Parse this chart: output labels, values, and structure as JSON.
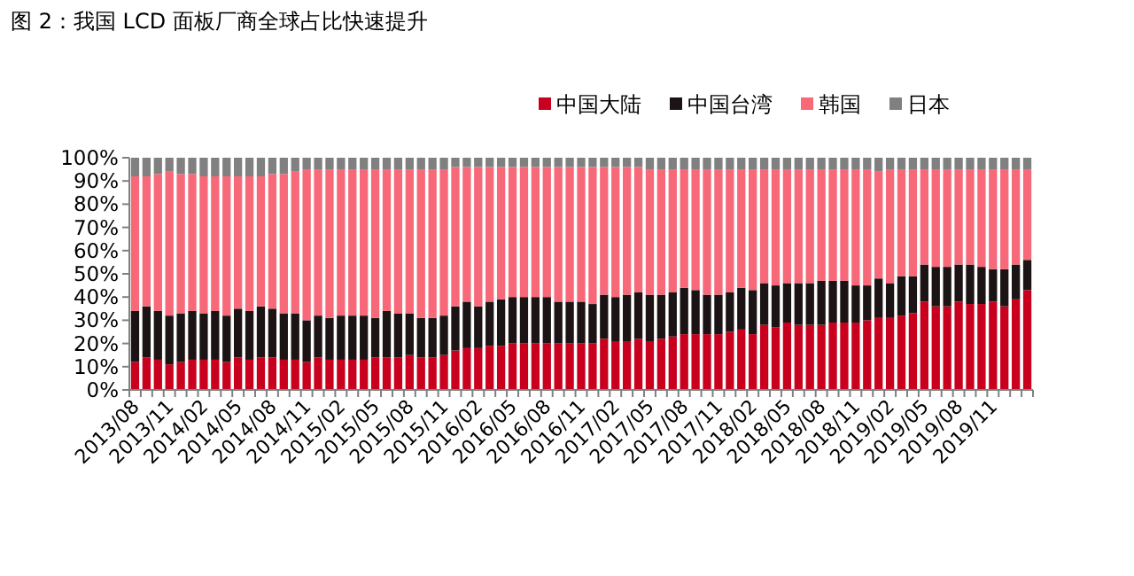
{
  "chart_data": {
    "type": "bar",
    "stacked": true,
    "title": "图 2：我国 LCD 面板厂商全球占比快速提升",
    "legend": "top",
    "categories": [
      "2013/08",
      null,
      null,
      "2013/11",
      null,
      null,
      "2014/02",
      null,
      null,
      "2014/05",
      null,
      null,
      "2014/08",
      null,
      null,
      "2014/11",
      null,
      null,
      "2015/02",
      null,
      null,
      "2015/05",
      null,
      null,
      "2015/08",
      null,
      null,
      "2015/11",
      null,
      null,
      "2016/02",
      null,
      null,
      "2016/05",
      null,
      null,
      "2016/08",
      null,
      null,
      "2016/11",
      null,
      null,
      "2017/02",
      null,
      null,
      "2017/05",
      null,
      null,
      "2017/08",
      null,
      null,
      "2017/11",
      null,
      null,
      "2018/02",
      null,
      null,
      "2018/05",
      null,
      null,
      "2018/08",
      null,
      null,
      "2018/11",
      null,
      null,
      "2019/02",
      null,
      null,
      "2019/05",
      null,
      null,
      "2019/08",
      null,
      null,
      "2019/11",
      null,
      null,
      null
    ],
    "ylim": [
      0,
      100
    ],
    "yticks": [
      {
        "value": 0,
        "label": "0%"
      },
      {
        "value": 10,
        "label": "10%"
      },
      {
        "value": 20,
        "label": "20%"
      },
      {
        "value": 30,
        "label": "30%"
      },
      {
        "value": 40,
        "label": "40%"
      },
      {
        "value": 50,
        "label": "50%"
      },
      {
        "value": 60,
        "label": "60%"
      },
      {
        "value": 70,
        "label": "70%"
      },
      {
        "value": 80,
        "label": "80%"
      },
      {
        "value": 90,
        "label": "90%"
      },
      {
        "value": 100,
        "label": "100%"
      }
    ],
    "series": [
      {
        "name": "中国大陆",
        "color": "#c8001e",
        "values": [
          12,
          14,
          13,
          11,
          12,
          13,
          13,
          13,
          12,
          14,
          13,
          14,
          14,
          13,
          13,
          12,
          14,
          13,
          13,
          13,
          13,
          14,
          14,
          14,
          15,
          14,
          14,
          15,
          17,
          18,
          18,
          19,
          19,
          20,
          20,
          20,
          20,
          20,
          20,
          20,
          20,
          22,
          21,
          21,
          22,
          21,
          22,
          23,
          24,
          24,
          24,
          24,
          25,
          26,
          24,
          28,
          27,
          29,
          28,
          28,
          28,
          29,
          29,
          29,
          30,
          31,
          31,
          32,
          33,
          38,
          36,
          36,
          38,
          37,
          37,
          38,
          36,
          39,
          43
        ]
      },
      {
        "name": "中国台湾",
        "color": "#1c1414",
        "values": [
          22,
          22,
          21,
          21,
          21,
          21,
          20,
          21,
          20,
          21,
          21,
          22,
          21,
          20,
          20,
          18,
          18,
          18,
          19,
          19,
          19,
          17,
          20,
          19,
          18,
          17,
          17,
          17,
          19,
          20,
          18,
          19,
          20,
          20,
          20,
          20,
          20,
          18,
          18,
          18,
          17,
          19,
          19,
          20,
          20,
          20,
          19,
          19,
          20,
          19,
          17,
          17,
          17,
          18,
          19,
          18,
          18,
          17,
          18,
          18,
          19,
          18,
          18,
          16,
          15,
          17,
          15,
          17,
          16,
          16,
          17,
          17,
          16,
          17,
          16,
          14,
          16,
          15,
          13
        ]
      },
      {
        "name": "韩国",
        "color": "#f76878",
        "values": [
          58,
          56,
          59,
          62,
          60,
          59,
          59,
          58,
          60,
          57,
          58,
          56,
          58,
          60,
          61,
          65,
          63,
          64,
          63,
          63,
          63,
          64,
          61,
          62,
          62,
          64,
          64,
          63,
          60,
          58,
          60,
          58,
          57,
          56,
          56,
          56,
          56,
          58,
          58,
          58,
          59,
          55,
          56,
          55,
          54,
          54,
          54,
          53,
          51,
          52,
          54,
          54,
          53,
          51,
          52,
          49,
          50,
          49,
          49,
          49,
          48,
          48,
          48,
          50,
          50,
          46,
          49,
          46,
          46,
          41,
          42,
          42,
          41,
          41,
          42,
          43,
          43,
          41,
          39
        ]
      },
      {
        "name": "日本",
        "color": "#808080",
        "values": [
          8,
          8,
          7,
          6,
          7,
          7,
          8,
          8,
          8,
          8,
          8,
          8,
          7,
          7,
          6,
          5,
          5,
          5,
          5,
          5,
          5,
          5,
          5,
          5,
          5,
          5,
          5,
          5,
          4,
          4,
          4,
          4,
          4,
          4,
          4,
          4,
          4,
          4,
          4,
          4,
          4,
          4,
          4,
          4,
          4,
          5,
          5,
          5,
          5,
          5,
          5,
          5,
          5,
          5,
          5,
          5,
          5,
          5,
          5,
          5,
          5,
          5,
          5,
          5,
          5,
          6,
          5,
          5,
          5,
          5,
          5,
          5,
          5,
          5,
          5,
          5,
          5,
          5,
          5
        ]
      }
    ]
  }
}
